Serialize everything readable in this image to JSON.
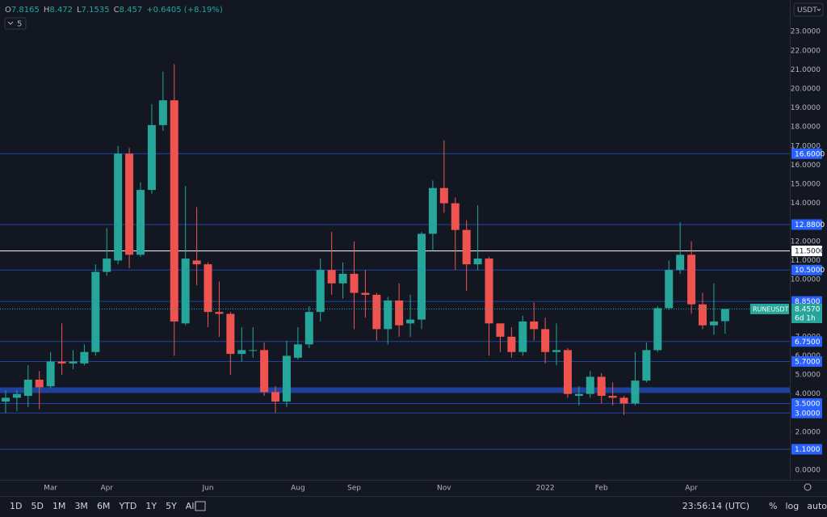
{
  "chart_data": {
    "type": "candlestick",
    "symbol": "RUNEUSDT",
    "currency": "USDT",
    "indicator_count": "5",
    "legend_keys": [
      "O",
      "H",
      "L",
      "C"
    ],
    "change_label": "+0.6405 (+8.19%)",
    "categories": [
      null,
      null,
      null,
      null,
      "Mar",
      null,
      null,
      null,
      null,
      "Apr",
      null,
      null,
      null,
      null,
      null,
      null,
      null,
      null,
      "Jun",
      null,
      null,
      null,
      null,
      null,
      null,
      null,
      "Aug",
      null,
      null,
      null,
      null,
      "Sep",
      null,
      null,
      null,
      null,
      null,
      null,
      null,
      "Nov",
      null,
      null,
      null,
      null,
      null,
      null,
      null,
      null,
      "2022",
      null,
      null,
      null,
      null,
      "Feb",
      null,
      null,
      null,
      null,
      null,
      null,
      null,
      "Apr",
      null,
      null,
      null
    ],
    "open": [
      3.6,
      3.8,
      3.9,
      4.75,
      4.4,
      5.7,
      5.6,
      5.6,
      6.2,
      10.4,
      11.0,
      16.6,
      11.3,
      14.7,
      18.1,
      19.4,
      7.7,
      11.0,
      10.8,
      8.3,
      8.2,
      6.1,
      6.3,
      6.3,
      4.1,
      3.6,
      5.9,
      6.6,
      8.3,
      10.5,
      9.8,
      10.3,
      9.3,
      9.2,
      7.4,
      8.9,
      7.7,
      7.9,
      12.4,
      14.8,
      14.0,
      12.6,
      10.8,
      11.1,
      7.7,
      7.0,
      6.2,
      7.8,
      7.4,
      6.2,
      6.3,
      3.9,
      4.0,
      4.9,
      3.9,
      3.8,
      3.5,
      4.7,
      6.3,
      8.5,
      10.5,
      11.3,
      8.7,
      7.6,
      7.8165
    ],
    "high": [
      4.2,
      4.2,
      5.5,
      5.2,
      6.2,
      7.7,
      6.3,
      6.6,
      10.8,
      12.7,
      17.0,
      16.9,
      15.1,
      19.2,
      20.9,
      21.3,
      14.9,
      13.8,
      10.9,
      9.9,
      8.3,
      7.5,
      7.5,
      6.7,
      4.4,
      6.8,
      7.5,
      8.6,
      11.1,
      12.5,
      10.9,
      12.0,
      10.5,
      9.3,
      9.1,
      9.8,
      9.2,
      12.5,
      15.2,
      17.3,
      14.3,
      13.1,
      13.9,
      11.2,
      7.7,
      7.5,
      8.1,
      8.8,
      8.0,
      7.7,
      6.4,
      4.4,
      5.2,
      5.1,
      4.6,
      3.9,
      6.2,
      6.7,
      8.6,
      11.0,
      13.0,
      12.0,
      9.3,
      9.8,
      8.472
    ],
    "low": [
      3.0,
      3.1,
      3.3,
      3.2,
      4.3,
      5.0,
      5.3,
      5.5,
      6.0,
      10.2,
      10.8,
      10.6,
      11.2,
      14.5,
      17.8,
      6.0,
      7.6,
      9.7,
      7.5,
      7.0,
      5.0,
      5.7,
      5.9,
      3.9,
      3.0,
      3.3,
      5.8,
      6.4,
      7.8,
      9.2,
      9.0,
      7.4,
      8.0,
      6.8,
      6.6,
      7.0,
      7.0,
      7.4,
      11.5,
      13.5,
      10.5,
      9.4,
      10.5,
      6.0,
      6.2,
      5.9,
      6.0,
      6.8,
      5.6,
      5.5,
      3.8,
      3.4,
      3.8,
      3.5,
      3.4,
      2.9,
      3.4,
      4.6,
      6.2,
      8.4,
      10.3,
      8.2,
      7.4,
      7.1,
      7.1535
    ],
    "close": [
      3.8,
      4.0,
      4.75,
      4.35,
      5.7,
      5.6,
      5.7,
      6.2,
      10.4,
      11.1,
      16.6,
      11.3,
      14.7,
      18.1,
      19.4,
      7.8,
      11.1,
      10.8,
      8.3,
      8.2,
      6.1,
      6.3,
      6.3,
      4.1,
      3.6,
      6.0,
      6.6,
      8.3,
      10.5,
      9.8,
      10.3,
      9.3,
      9.2,
      7.4,
      8.9,
      7.6,
      7.9,
      12.4,
      14.8,
      14.0,
      12.6,
      10.8,
      11.1,
      7.7,
      7.0,
      6.2,
      7.8,
      7.4,
      6.2,
      6.3,
      4.0,
      4.0,
      4.9,
      3.9,
      3.8,
      3.5,
      4.7,
      6.3,
      8.5,
      10.5,
      11.3,
      8.7,
      7.6,
      7.8,
      8.457
    ],
    "up_color": "#26a69a",
    "down_color": "#ef5350",
    "ylim": [
      -0.42,
      24.66
    ],
    "yticks": [
      {
        "value": 23,
        "label": "23.0000"
      },
      {
        "value": 22,
        "label": "22.0000"
      },
      {
        "value": 21,
        "label": "21.0000"
      },
      {
        "value": 20,
        "label": "20.0000"
      },
      {
        "value": 19,
        "label": "19.0000"
      },
      {
        "value": 18,
        "label": "18.0000"
      },
      {
        "value": 17,
        "label": "17.0000"
      },
      {
        "value": 16,
        "label": "16.0000"
      },
      {
        "value": 15,
        "label": "15.0000"
      },
      {
        "value": 14,
        "label": "14.0000"
      },
      {
        "value": 12,
        "label": "12.0000"
      },
      {
        "value": 11,
        "label": "11.0000"
      },
      {
        "value": 10,
        "label": "10.0000"
      },
      {
        "value": 7,
        "label": "7.0000"
      },
      {
        "value": 6,
        "label": "6.0000"
      },
      {
        "value": 5,
        "label": "5.0000"
      },
      {
        "value": 4,
        "label": "4.0000"
      },
      {
        "value": 2,
        "label": "2.0000"
      },
      {
        "value": 0,
        "label": "0.0000"
      }
    ],
    "levels": [
      {
        "value": 16.6,
        "label": "16.6000",
        "color": "#2962ff"
      },
      {
        "value": 12.88,
        "label": "12.8800",
        "color": "#2962ff"
      },
      {
        "value": 11.5,
        "label": "11.5000",
        "color": "#ffffff"
      },
      {
        "value": 10.5,
        "label": "10.5000",
        "color": "#2962ff"
      },
      {
        "value": 8.85,
        "label": "8.8500",
        "color": "#2962ff"
      },
      {
        "value": 6.75,
        "label": "6.7500",
        "color": "#2962ff"
      },
      {
        "value": 5.7,
        "label": "5.7000",
        "color": "#2962ff"
      },
      {
        "value": 4.2,
        "color": "#2962ff",
        "thick": true
      },
      {
        "value": 3.5,
        "label": "3.5000",
        "color": "#2962ff"
      },
      {
        "value": 3.0,
        "label": "3.0000",
        "color": "#2962ff"
      },
      {
        "value": 1.1,
        "label": "1.1000",
        "color": "#2962ff"
      }
    ],
    "last_price": {
      "value": 8.457,
      "label": "8.4570",
      "countdown": "6d 1h"
    }
  },
  "toolbar": {
    "ranges": [
      "1D",
      "5D",
      "1M",
      "3M",
      "6M",
      "YTD",
      "1Y",
      "5Y",
      "All"
    ],
    "clock": "23:56:14 (UTC)",
    "scale_options": [
      "%",
      "log",
      "auto"
    ]
  }
}
